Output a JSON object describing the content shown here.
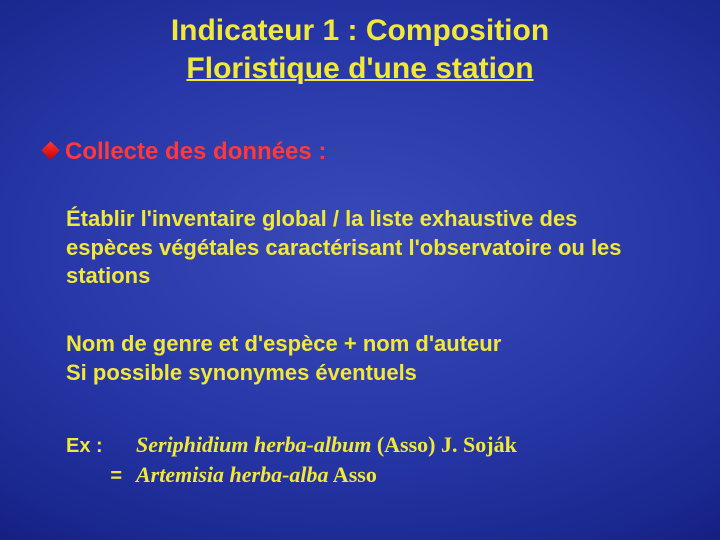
{
  "type": "slide",
  "background": {
    "gradient_center": "#3a4ab8",
    "gradient_mid": "#1a2890",
    "gradient_edge": "#050a50"
  },
  "colors": {
    "title": "#f2e838",
    "bullet_marker": "#ff3838",
    "bullet_text": "#ff3838",
    "body": "#f2e838"
  },
  "fonts": {
    "title_size": 30,
    "bullet_size": 24,
    "body_size": 22,
    "example_size": 20,
    "family_sans": "Verdana",
    "family_serif": "Times New Roman"
  },
  "title": {
    "line1": "Indicateur 1 : Composition",
    "line2_underlined": "Floristique d'une station"
  },
  "bullet": {
    "text": "Collecte des données :"
  },
  "paragraph1": "Établir l'inventaire global / la liste exhaustive des espèces végétales caractérisant l'observatoire ou les stations",
  "paragraph2_line1": "Nom de genre et d'espèce  + nom d'auteur",
  "paragraph2_line2": "Si possible synonymes éventuels",
  "example": {
    "label": "Ex :",
    "line1_italic": "Seriphidium herba-album",
    "line1_roman": " (Asso) J. Soják",
    "eq": "=",
    "line2_italic": "Artemisia herba-alba",
    "line2_roman": " Asso"
  }
}
